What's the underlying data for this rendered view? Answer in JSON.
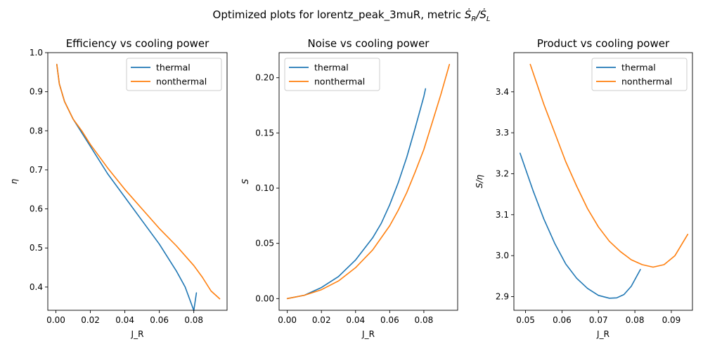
{
  "figure": {
    "suptitle_text": "Optimized plots for lorentz_peak_3muR, metric ",
    "suptitle_metric": "Ṡ_R/Ṡ_L"
  },
  "chart_data": [
    {
      "type": "line",
      "title": "Efficiency vs cooling power",
      "xlabel": "J_R",
      "ylabel": "η",
      "xlim": [
        -0.0047,
        0.0993
      ],
      "ylim": [
        0.3405,
        1.0
      ],
      "xticks": [
        0.0,
        0.02,
        0.04,
        0.06,
        0.08
      ],
      "xtick_labels": [
        "0.00",
        "0.02",
        "0.04",
        "0.06",
        "0.08"
      ],
      "yticks": [
        0.4,
        0.5,
        0.6,
        0.7,
        0.8,
        0.9,
        1.0
      ],
      "ytick_labels": [
        "0.4",
        "0.5",
        "0.6",
        "0.7",
        "0.8",
        "0.9",
        "1.0"
      ],
      "grid": false,
      "legend": "top-right",
      "series": [
        {
          "name": "thermal",
          "color": "#1f77b4",
          "x": [
            0.0005,
            0.002,
            0.005,
            0.01,
            0.015,
            0.02,
            0.03,
            0.04,
            0.05,
            0.06,
            0.07,
            0.075,
            0.08,
            0.0815
          ],
          "y": [
            0.97,
            0.92,
            0.875,
            0.83,
            0.795,
            0.76,
            0.69,
            0.63,
            0.57,
            0.51,
            0.44,
            0.4,
            0.34,
            0.385
          ]
        },
        {
          "name": "nonthermal",
          "color": "#ff7f0e",
          "x": [
            0.0005,
            0.002,
            0.005,
            0.01,
            0.015,
            0.02,
            0.03,
            0.04,
            0.05,
            0.06,
            0.07,
            0.08,
            0.085,
            0.09,
            0.095
          ],
          "y": [
            0.97,
            0.92,
            0.875,
            0.83,
            0.8,
            0.765,
            0.705,
            0.65,
            0.6,
            0.55,
            0.505,
            0.455,
            0.425,
            0.39,
            0.37
          ]
        }
      ]
    },
    {
      "type": "line",
      "title": "Noise vs cooling power",
      "xlabel": "J_R",
      "ylabel": "S",
      "xlim": [
        -0.0048,
        0.0998
      ],
      "ylim": [
        -0.0106,
        0.2227
      ],
      "xticks": [
        0.0,
        0.02,
        0.04,
        0.06,
        0.08
      ],
      "xtick_labels": [
        "0.00",
        "0.02",
        "0.04",
        "0.06",
        "0.08"
      ],
      "yticks": [
        0.0,
        0.05,
        0.1,
        0.15,
        0.2
      ],
      "ytick_labels": [
        "0.00",
        "0.05",
        "0.10",
        "0.15",
        "0.20"
      ],
      "grid": false,
      "legend": "top-left",
      "series": [
        {
          "name": "thermal",
          "color": "#1f77b4",
          "x": [
            0.0,
            0.01,
            0.02,
            0.03,
            0.04,
            0.05,
            0.055,
            0.06,
            0.065,
            0.07,
            0.075,
            0.08,
            0.081
          ],
          "y": [
            0.0,
            0.003,
            0.01,
            0.02,
            0.035,
            0.055,
            0.068,
            0.085,
            0.105,
            0.128,
            0.155,
            0.183,
            0.19
          ]
        },
        {
          "name": "nonthermal",
          "color": "#ff7f0e",
          "x": [
            0.0,
            0.01,
            0.02,
            0.03,
            0.04,
            0.05,
            0.06,
            0.065,
            0.07,
            0.075,
            0.08,
            0.085,
            0.09,
            0.095
          ],
          "y": [
            0.0,
            0.003,
            0.008,
            0.016,
            0.028,
            0.044,
            0.066,
            0.08,
            0.096,
            0.115,
            0.135,
            0.16,
            0.185,
            0.212
          ]
        }
      ]
    },
    {
      "type": "line",
      "title": "Product vs cooling power",
      "xlabel": "J_R",
      "ylabel": "S/η",
      "xlim": [
        0.0468,
        0.0958
      ],
      "ylim": [
        2.8666,
        3.4956
      ],
      "xticks": [
        0.05,
        0.06,
        0.07,
        0.08,
        0.09
      ],
      "xtick_labels": [
        "0.05",
        "0.06",
        "0.07",
        "0.08",
        "0.09"
      ],
      "yticks": [
        2.9,
        3.0,
        3.1,
        3.2,
        3.3,
        3.4
      ],
      "ytick_labels": [
        "2.9",
        "3.0",
        "3.1",
        "3.2",
        "3.3",
        "3.4"
      ],
      "grid": false,
      "legend": "top-right",
      "series": [
        {
          "name": "thermal",
          "color": "#1f77b4",
          "x": [
            0.0485,
            0.052,
            0.055,
            0.058,
            0.061,
            0.064,
            0.067,
            0.07,
            0.073,
            0.075,
            0.077,
            0.079,
            0.0815
          ],
          "y": [
            3.25,
            3.16,
            3.09,
            3.03,
            2.98,
            2.945,
            2.92,
            2.903,
            2.896,
            2.897,
            2.905,
            2.925,
            2.966
          ]
        },
        {
          "name": "nonthermal",
          "color": "#ff7f0e",
          "x": [
            0.0513,
            0.055,
            0.058,
            0.061,
            0.064,
            0.067,
            0.07,
            0.073,
            0.076,
            0.079,
            0.082,
            0.085,
            0.088,
            0.091,
            0.0945
          ],
          "y": [
            3.467,
            3.37,
            3.3,
            3.23,
            3.17,
            3.115,
            3.07,
            3.035,
            3.01,
            2.99,
            2.978,
            2.972,
            2.978,
            3.0,
            3.052
          ]
        }
      ]
    }
  ]
}
